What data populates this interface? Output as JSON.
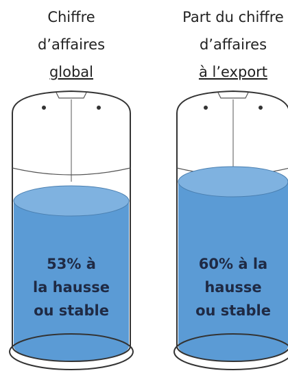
{
  "chart_data": {
    "type": "tank",
    "categories": [
      [
        "Chiffre",
        "d’affaires",
        "global"
      ],
      [
        "Part du chiffre",
        "d’affaires",
        "à l’export"
      ]
    ],
    "values": [
      53,
      60
    ],
    "value_labels": [
      [
        "53% à",
        "la hausse",
        "ou stable"
      ],
      [
        "60% à la",
        "hausse",
        "ou stable"
      ]
    ],
    "color": "#5b9bd5"
  }
}
